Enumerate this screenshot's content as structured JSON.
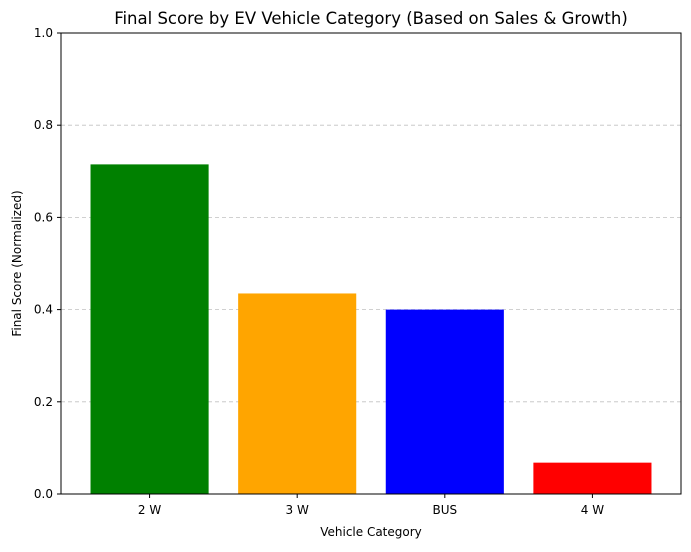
{
  "chart_data": {
    "type": "bar",
    "title": "Final Score by EV Vehicle Category (Based on Sales & Growth)",
    "xlabel": "Vehicle Category",
    "ylabel": "Final Score (Normalized)",
    "categories": [
      "2 W",
      "3 W",
      "BUS",
      "4 W"
    ],
    "values": [
      0.715,
      0.435,
      0.4,
      0.068
    ],
    "colors": [
      "#008000",
      "#ffa500",
      "#0000ff",
      "#ff0000"
    ],
    "ylim": [
      0,
      1.0
    ],
    "yticks": [
      0.0,
      0.2,
      0.4,
      0.6,
      0.8,
      1.0
    ],
    "ytick_labels": [
      "0.0",
      "0.2",
      "0.4",
      "0.6",
      "0.8",
      "1.0"
    ],
    "grid": "y-axis dashed"
  }
}
